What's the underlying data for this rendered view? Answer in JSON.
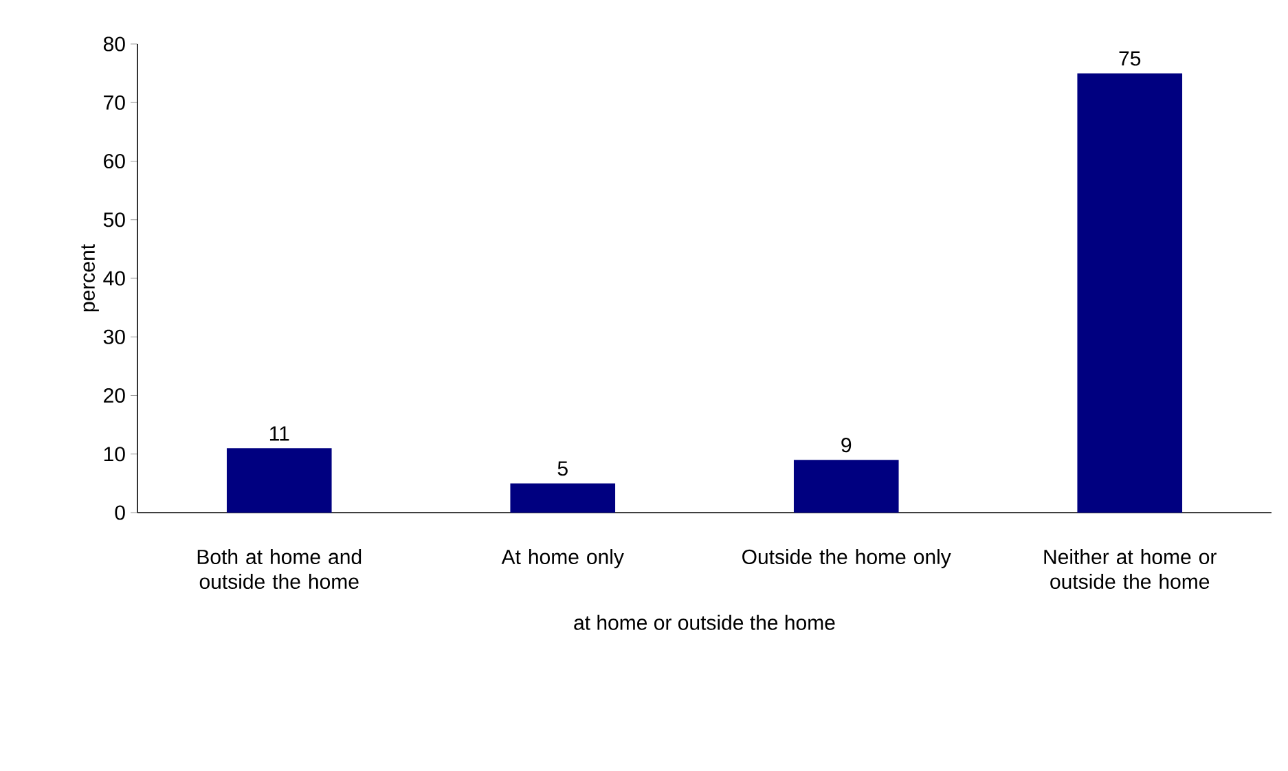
{
  "chart_data": {
    "type": "bar",
    "xlabel": "at home or outside the home",
    "ylabel": "percent",
    "categories": [
      "Both at home and outside the home",
      "At home only",
      "Outside the home only",
      "Neither at home or outside the home"
    ],
    "values": [
      11,
      5,
      9,
      75
    ],
    "color": "#000080",
    "data_labels": true,
    "ylim": [
      0,
      80
    ],
    "yticks": [
      0,
      10,
      20,
      30,
      40,
      50,
      60,
      70,
      80
    ],
    "grid": false
  }
}
